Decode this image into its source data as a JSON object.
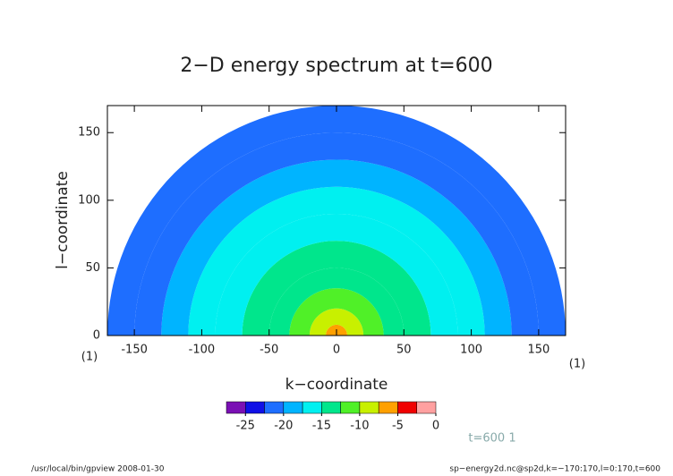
{
  "chart_data": {
    "type": "radial-heatmap",
    "title": "2−D energy spectrum at t=600",
    "xlabel": "k−coordinate",
    "ylabel": "l−coordinate",
    "xunit": "(1)",
    "yunit": "(1)",
    "xlim": [
      -170,
      170
    ],
    "ylim": [
      0,
      170
    ],
    "xticks": [
      -150,
      -100,
      -50,
      0,
      50,
      100,
      150
    ],
    "yticks": [
      0,
      50,
      100,
      150
    ],
    "radius_bins": [
      0,
      8,
      20,
      35,
      50,
      70,
      90,
      110,
      130,
      150,
      170
    ],
    "values": [
      -6,
      -9,
      -11,
      -13,
      -14,
      -15.5,
      -17,
      -19,
      -21,
      -22
    ],
    "colorbar": {
      "edges": [
        -27.5,
        -25,
        -22.5,
        -20,
        -17.5,
        -15,
        -12.5,
        -10,
        -7.5,
        -5,
        -2.5,
        0
      ],
      "colors": [
        "#7a10b4",
        "#1010e6",
        "#1e6eff",
        "#00b4ff",
        "#00f0f0",
        "#00e68c",
        "#50f028",
        "#c8f000",
        "#ffa000",
        "#f00000",
        "#ffa0a0"
      ],
      "ticks": [
        -25,
        -20,
        -15,
        -10,
        -5,
        0
      ]
    },
    "annotation": "t=600 1",
    "footer_left": "/usr/local/bin/gpview   2008-01-30",
    "footer_right": "sp−energy2d.nc@sp2d,k=−170:170,l=0:170,t=600"
  }
}
